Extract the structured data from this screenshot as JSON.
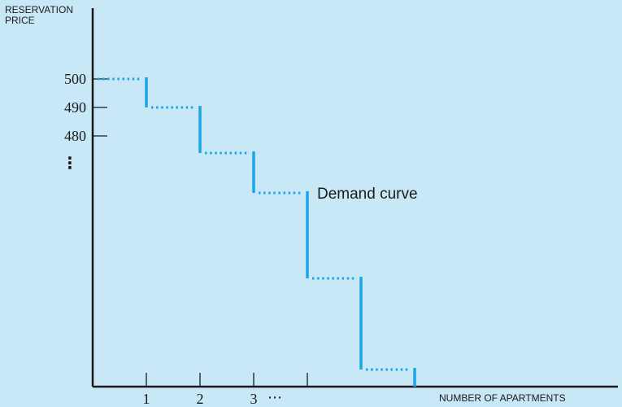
{
  "chart_data": {
    "type": "line",
    "title": "",
    "ylabel_line1": "RESERVATION",
    "ylabel_line2": "PRICE",
    "xlabel": "NUMBER OF APARTMENTS",
    "y_tick_labels": [
      "500",
      "490",
      "480"
    ],
    "y_ellipsis": "⋮",
    "x_tick_labels": [
      "1",
      "2",
      "3"
    ],
    "x_ellipsis": "⋯",
    "annotation": "Demand curve",
    "x_ticks": [
      1,
      2,
      3,
      4
    ],
    "y_ticks": [
      500,
      490,
      480
    ],
    "x_range": [
      0,
      6
    ],
    "steps": [
      {
        "x_start": 0,
        "x_end": 1,
        "price": 500
      },
      {
        "x_start": 1,
        "x_end": 2,
        "price": 490
      },
      {
        "x_start": 2,
        "x_end": 3,
        "price": 474
      },
      {
        "x_start": 3,
        "x_end": 4,
        "price": 460
      },
      {
        "x_start": 4,
        "x_end": 5,
        "price": 430
      },
      {
        "x_start": 5,
        "x_end": 6,
        "price": 398
      }
    ],
    "series_color": "#1aa6e4",
    "axis_color": "#1a1a1a",
    "background": "#c8e8f8"
  }
}
